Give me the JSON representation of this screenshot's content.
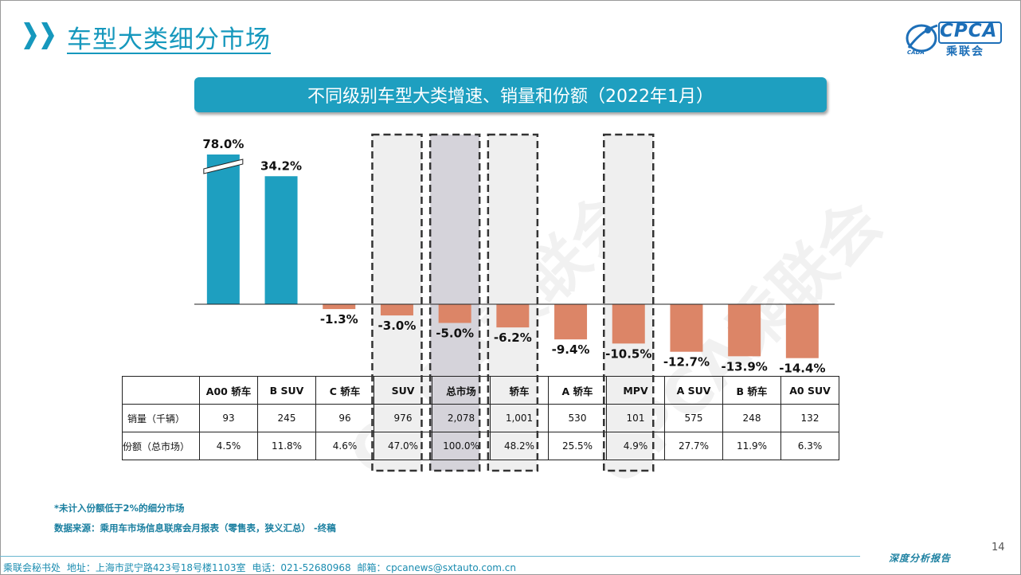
{
  "header": {
    "title": "车型大类细分市场",
    "logo_text": "CPCA",
    "logo_cn": "乘联会",
    "logo_sub": "CADA"
  },
  "banner": {
    "text": "不同级别车型大类增速、销量和份额（2022年1月）"
  },
  "chart_data": {
    "type": "bar",
    "title": "不同级别车型大类增速、销量和份额（2022年1月）",
    "categories": [
      "A00 轿车",
      "B SUV",
      "C 轿车",
      "SUV",
      "总市场",
      "轿车",
      "A 轿车",
      "MPV",
      "A SUV",
      "B 轿车",
      "A0 SUV"
    ],
    "series": [
      {
        "values": [
          78.0,
          34.2,
          -1.3,
          -3.0,
          -5.0,
          -6.2,
          -9.4,
          -10.5,
          -12.7,
          -13.9,
          -14.4
        ]
      }
    ],
    "value_labels": [
      "78.0%",
      "34.2%",
      "-1.3%",
      "-3.0%",
      "-5.0%",
      "-6.2%",
      "-9.4%",
      "-10.5%",
      "-12.7%",
      "-13.9%",
      "-14.4%"
    ],
    "axis_break_on": "A00 轿车",
    "highlighted": [
      "SUV",
      "总市场",
      "轿车",
      "MPV"
    ],
    "colors": {
      "positive": "#1e9fc0",
      "negative": "#dc8567",
      "highlight_bg": "#efefef",
      "market_bg": "#d5d3da"
    }
  },
  "table": {
    "rows": [
      {
        "label": "销量（千辆）",
        "values": [
          "93",
          "245",
          "96",
          "976",
          "2,078",
          "1,001",
          "530",
          "101",
          "575",
          "248",
          "132"
        ]
      },
      {
        "label": "份额（总市场）",
        "values": [
          "4.5%",
          "11.8%",
          "4.6%",
          "47.0%",
          "100.0%",
          "48.2%",
          "25.5%",
          "4.9%",
          "27.7%",
          "11.9%",
          "6.3%"
        ]
      }
    ]
  },
  "footnotes": [
    "*未计入份额低于2%的细分市场",
    "数据来源：乘用车市场信息联席会月报表（零售表，狭义汇总）   -终稿"
  ],
  "footer": {
    "text": "乘联会秘书处   地址：上海市武宁路423号18号楼1103室   电话：021-52680968   邮箱：cpcanews@sxtauto.com.cn",
    "tag": "深度分析报告",
    "page": "14"
  },
  "watermark": "CPCA乘联会"
}
